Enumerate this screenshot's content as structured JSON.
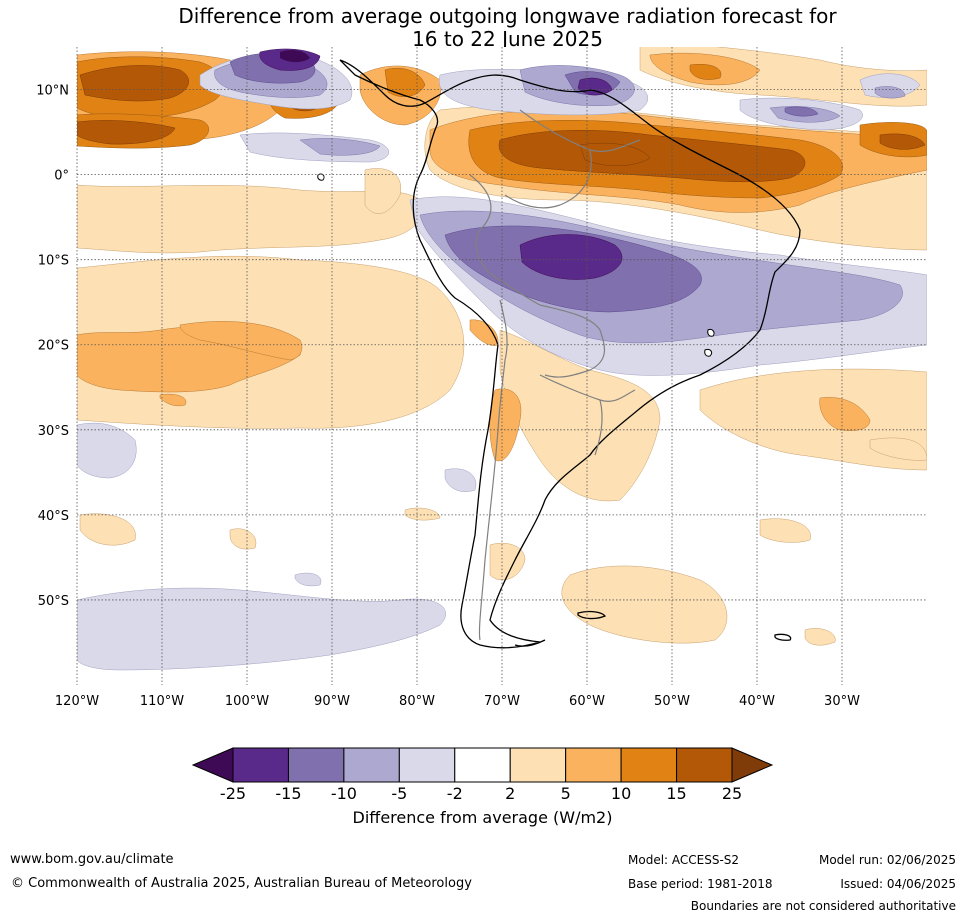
{
  "title": {
    "line1": "Difference from average outgoing longwave radiation forecast for",
    "line2": "16 to 22 June 2025"
  },
  "map_data": {
    "lon_range": [
      -120,
      -20
    ],
    "lat_range": [
      -60,
      15
    ],
    "lon_ticks": [
      {
        "value": -120,
        "label": "120°W"
      },
      {
        "value": -110,
        "label": "110°W"
      },
      {
        "value": -100,
        "label": "100°W"
      },
      {
        "value": -90,
        "label": "90°W"
      },
      {
        "value": -80,
        "label": "80°W"
      },
      {
        "value": -70,
        "label": "70°W"
      },
      {
        "value": -60,
        "label": "60°W"
      },
      {
        "value": -50,
        "label": "50°W"
      },
      {
        "value": -40,
        "label": "40°W"
      },
      {
        "value": -30,
        "label": "30°W"
      }
    ],
    "lat_ticks": [
      {
        "value": 10,
        "label": "10°N"
      },
      {
        "value": 0,
        "label": "0°"
      },
      {
        "value": -10,
        "label": "10°S"
      },
      {
        "value": -20,
        "label": "20°S"
      },
      {
        "value": -30,
        "label": "30°S"
      },
      {
        "value": -40,
        "label": "40°S"
      },
      {
        "value": -50,
        "label": "50°S"
      }
    ],
    "grid": true,
    "region": "South America",
    "colorbar": {
      "levels": [
        "-25",
        "-15",
        "-10",
        "-5",
        "-2",
        "2",
        "5",
        "10",
        "15",
        "25"
      ],
      "colors": [
        "#5a2a8a",
        "#8070ad",
        "#ada8d0",
        "#d9d9ea",
        "#ffffff",
        "#fde0b3",
        "#fab25e",
        "#e08214",
        "#b35806"
      ],
      "under_color": "#3f0a55",
      "over_color": "#7f3b08",
      "label": "Difference from average (W/m2)"
    }
  },
  "footer": {
    "website": "www.bom.gov.au/climate",
    "copyright": "© Commonwealth of Australia 2025, Australian Bureau of Meteorology",
    "model": "Model: ACCESS-S2",
    "model_run": "Model run: 02/06/2025",
    "base_period": "Base period: 1981-2018",
    "issued": "Issued: 04/06/2025",
    "disclaimer": "Boundaries are not considered authoritative"
  }
}
